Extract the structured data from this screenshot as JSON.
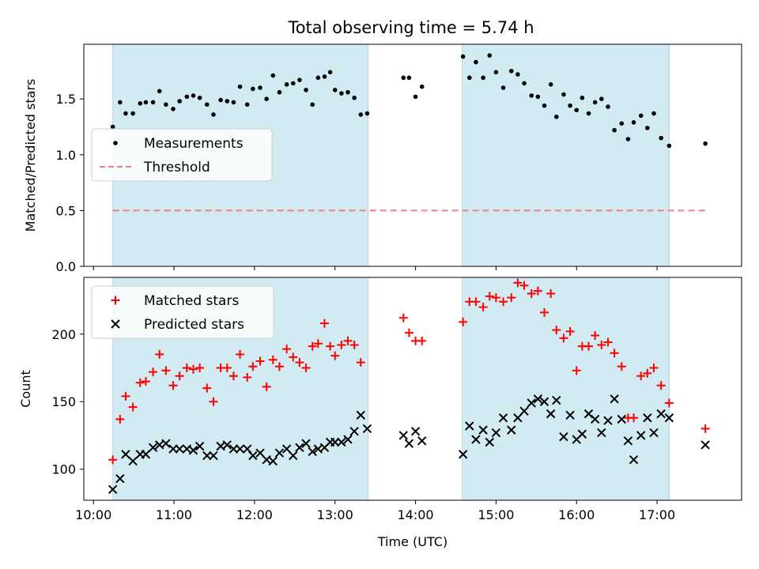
{
  "chart_data": {
    "title": "Total observing time = 5.74 h",
    "xlabel": "Time (UTC)",
    "x_ticks": [
      "10:00",
      "11:00",
      "12:00",
      "13:00",
      "14:00",
      "15:00",
      "16:00",
      "17:00"
    ],
    "x_tick_hours": [
      10,
      11,
      12,
      13,
      14,
      15,
      16,
      17
    ],
    "xlim_hours": [
      9.88,
      18.05
    ],
    "shaded_intervals_hours": [
      [
        10.24,
        13.41
      ],
      [
        14.58,
        17.15
      ]
    ],
    "shade_color": "#add8e6",
    "panels": [
      {
        "type": "scatter",
        "ylabel": "Matched/Predicted stars",
        "ylim": [
          0,
          1.99
        ],
        "y_ticks": [
          "0.0",
          "0.5",
          "1.0",
          "1.5"
        ],
        "y_tick_values": [
          0,
          0.5,
          1.0,
          1.5
        ],
        "legend": {
          "placement": "center-left",
          "entries": [
            "Measurements",
            "Threshold"
          ]
        },
        "series": [
          {
            "name": "Measurements",
            "marker": "dot",
            "color": "#000000",
            "points": [
              [
                10.24,
                1.25
              ],
              [
                10.33,
                1.47
              ],
              [
                10.4,
                1.37
              ],
              [
                10.49,
                1.37
              ],
              [
                10.58,
                1.46
              ],
              [
                10.65,
                1.47
              ],
              [
                10.74,
                1.47
              ],
              [
                10.82,
                1.57
              ],
              [
                10.9,
                1.45
              ],
              [
                10.99,
                1.41
              ],
              [
                11.07,
                1.48
              ],
              [
                11.16,
                1.52
              ],
              [
                11.24,
                1.53
              ],
              [
                11.32,
                1.51
              ],
              [
                11.41,
                1.45
              ],
              [
                11.49,
                1.36
              ],
              [
                11.58,
                1.49
              ],
              [
                11.66,
                1.48
              ],
              [
                11.74,
                1.47
              ],
              [
                11.82,
                1.61
              ],
              [
                11.91,
                1.45
              ],
              [
                11.98,
                1.59
              ],
              [
                12.07,
                1.6
              ],
              [
                12.15,
                1.5
              ],
              [
                12.23,
                1.71
              ],
              [
                12.31,
                1.56
              ],
              [
                12.4,
                1.63
              ],
              [
                12.48,
                1.64
              ],
              [
                12.56,
                1.67
              ],
              [
                12.64,
                1.58
              ],
              [
                12.72,
                1.45
              ],
              [
                12.79,
                1.69
              ],
              [
                12.87,
                1.7
              ],
              [
                12.94,
                1.74
              ],
              [
                13.0,
                1.58
              ],
              [
                13.08,
                1.55
              ],
              [
                13.16,
                1.56
              ],
              [
                13.24,
                1.51
              ],
              [
                13.32,
                1.36
              ],
              [
                13.4,
                1.37
              ],
              [
                13.85,
                1.69
              ],
              [
                13.92,
                1.69
              ],
              [
                14.0,
                1.52
              ],
              [
                14.08,
                1.61
              ],
              [
                14.59,
                1.88
              ],
              [
                14.67,
                1.69
              ],
              [
                14.75,
                1.83
              ],
              [
                14.84,
                1.69
              ],
              [
                14.92,
                1.89
              ],
              [
                15.0,
                1.74
              ],
              [
                15.09,
                1.6
              ],
              [
                15.19,
                1.75
              ],
              [
                15.27,
                1.72
              ],
              [
                15.35,
                1.64
              ],
              [
                15.44,
                1.53
              ],
              [
                15.52,
                1.52
              ],
              [
                15.6,
                1.44
              ],
              [
                15.68,
                1.63
              ],
              [
                15.75,
                1.34
              ],
              [
                15.84,
                1.54
              ],
              [
                15.92,
                1.44
              ],
              [
                16.0,
                1.4
              ],
              [
                16.07,
                1.51
              ],
              [
                16.15,
                1.37
              ],
              [
                16.23,
                1.47
              ],
              [
                16.31,
                1.5
              ],
              [
                16.39,
                1.43
              ],
              [
                16.47,
                1.22
              ],
              [
                16.56,
                1.28
              ],
              [
                16.64,
                1.14
              ],
              [
                16.71,
                1.29
              ],
              [
                16.8,
                1.35
              ],
              [
                16.88,
                1.24
              ],
              [
                16.96,
                1.37
              ],
              [
                17.05,
                1.15
              ],
              [
                17.15,
                1.08
              ],
              [
                17.6,
                1.1
              ]
            ]
          },
          {
            "name": "Threshold",
            "type": "line",
            "style": "dashed",
            "color": "#f08080",
            "value": 0.5,
            "x_range": [
              10.24,
              17.6
            ]
          }
        ]
      },
      {
        "type": "scatter",
        "ylabel": "Count",
        "ylim": [
          77,
          242
        ],
        "y_ticks": [
          "100",
          "150",
          "200"
        ],
        "y_tick_values": [
          100,
          150,
          200
        ],
        "legend": {
          "placement": "top-left",
          "entries": [
            "Matched stars",
            "Predicted stars"
          ]
        },
        "series": [
          {
            "name": "Matched stars",
            "marker": "plus",
            "color": "#ff0000",
            "points": [
              [
                10.24,
                107
              ],
              [
                10.33,
                137
              ],
              [
                10.4,
                154
              ],
              [
                10.49,
                146
              ],
              [
                10.58,
                164
              ],
              [
                10.65,
                165
              ],
              [
                10.74,
                172
              ],
              [
                10.82,
                185
              ],
              [
                10.9,
                173
              ],
              [
                10.99,
                162
              ],
              [
                11.07,
                169
              ],
              [
                11.16,
                175
              ],
              [
                11.24,
                174
              ],
              [
                11.32,
                175
              ],
              [
                11.41,
                160
              ],
              [
                11.49,
                150
              ],
              [
                11.58,
                175
              ],
              [
                11.66,
                175
              ],
              [
                11.74,
                169
              ],
              [
                11.82,
                185
              ],
              [
                11.91,
                168
              ],
              [
                11.98,
                176
              ],
              [
                12.07,
                180
              ],
              [
                12.15,
                161
              ],
              [
                12.23,
                181
              ],
              [
                12.31,
                176
              ],
              [
                12.4,
                189
              ],
              [
                12.48,
                183
              ],
              [
                12.56,
                179
              ],
              [
                12.64,
                175
              ],
              [
                12.72,
                191
              ],
              [
                12.79,
                193
              ],
              [
                12.87,
                208
              ],
              [
                12.94,
                191
              ],
              [
                13.0,
                184
              ],
              [
                13.08,
                192
              ],
              [
                13.16,
                195
              ],
              [
                13.24,
                192
              ],
              [
                13.32,
                179
              ],
              [
                13.85,
                212
              ],
              [
                13.92,
                201
              ],
              [
                14.0,
                195
              ],
              [
                14.08,
                195
              ],
              [
                14.59,
                209
              ],
              [
                14.67,
                224
              ],
              [
                14.75,
                224
              ],
              [
                14.84,
                220
              ],
              [
                14.92,
                228
              ],
              [
                15.0,
                227
              ],
              [
                15.09,
                224
              ],
              [
                15.19,
                227
              ],
              [
                15.27,
                238
              ],
              [
                15.35,
                236
              ],
              [
                15.44,
                230
              ],
              [
                15.52,
                232
              ],
              [
                15.6,
                216
              ],
              [
                15.68,
                230
              ],
              [
                15.75,
                203
              ],
              [
                15.84,
                197
              ],
              [
                15.92,
                202
              ],
              [
                16.0,
                173
              ],
              [
                16.07,
                191
              ],
              [
                16.15,
                191
              ],
              [
                16.23,
                199
              ],
              [
                16.31,
                192
              ],
              [
                16.39,
                194
              ],
              [
                16.47,
                186
              ],
              [
                16.56,
                176
              ],
              [
                16.64,
                138
              ],
              [
                16.71,
                138
              ],
              [
                16.8,
                169
              ],
              [
                16.88,
                171
              ],
              [
                16.96,
                175
              ],
              [
                17.05,
                162
              ],
              [
                17.15,
                149
              ],
              [
                17.6,
                130
              ]
            ]
          },
          {
            "name": "Predicted stars",
            "marker": "x",
            "color": "#000000",
            "points": [
              [
                10.24,
                85
              ],
              [
                10.33,
                93
              ],
              [
                10.4,
                111
              ],
              [
                10.49,
                106
              ],
              [
                10.58,
                111
              ],
              [
                10.65,
                111
              ],
              [
                10.74,
                116
              ],
              [
                10.82,
                118
              ],
              [
                10.9,
                119
              ],
              [
                10.99,
                115
              ],
              [
                11.07,
                115
              ],
              [
                11.16,
                115
              ],
              [
                11.24,
                114
              ],
              [
                11.32,
                117
              ],
              [
                11.41,
                110
              ],
              [
                11.49,
                110
              ],
              [
                11.58,
                117
              ],
              [
                11.66,
                118
              ],
              [
                11.74,
                115
              ],
              [
                11.82,
                115
              ],
              [
                11.91,
                115
              ],
              [
                11.98,
                110
              ],
              [
                12.07,
                112
              ],
              [
                12.15,
                107
              ],
              [
                12.23,
                106
              ],
              [
                12.31,
                112
              ],
              [
                12.4,
                115
              ],
              [
                12.48,
                110
              ],
              [
                12.56,
                116
              ],
              [
                12.64,
                119
              ],
              [
                12.72,
                113
              ],
              [
                12.79,
                115
              ],
              [
                12.87,
                116
              ],
              [
                12.94,
                120
              ],
              [
                13.0,
                120
              ],
              [
                13.08,
                120
              ],
              [
                13.16,
                122
              ],
              [
                13.24,
                128
              ],
              [
                13.32,
                140
              ],
              [
                13.4,
                130
              ],
              [
                13.85,
                125
              ],
              [
                13.92,
                119
              ],
              [
                14.0,
                128
              ],
              [
                14.08,
                121
              ],
              [
                14.59,
                111
              ],
              [
                14.67,
                132
              ],
              [
                14.75,
                122
              ],
              [
                14.84,
                129
              ],
              [
                14.92,
                120
              ],
              [
                15.0,
                127
              ],
              [
                15.09,
                138
              ],
              [
                15.19,
                129
              ],
              [
                15.27,
                138
              ],
              [
                15.35,
                143
              ],
              [
                15.44,
                149
              ],
              [
                15.52,
                152
              ],
              [
                15.6,
                150
              ],
              [
                15.68,
                141
              ],
              [
                15.75,
                151
              ],
              [
                15.84,
                124
              ],
              [
                15.92,
                140
              ],
              [
                16.0,
                122
              ],
              [
                16.07,
                126
              ],
              [
                16.15,
                141
              ],
              [
                16.23,
                137
              ],
              [
                16.31,
                127
              ],
              [
                16.39,
                136
              ],
              [
                16.47,
                152
              ],
              [
                16.56,
                137
              ],
              [
                16.64,
                121
              ],
              [
                16.71,
                107
              ],
              [
                16.8,
                125
              ],
              [
                16.88,
                138
              ],
              [
                16.96,
                127
              ],
              [
                17.05,
                141
              ],
              [
                17.15,
                138
              ],
              [
                17.6,
                118
              ]
            ]
          }
        ]
      }
    ]
  }
}
